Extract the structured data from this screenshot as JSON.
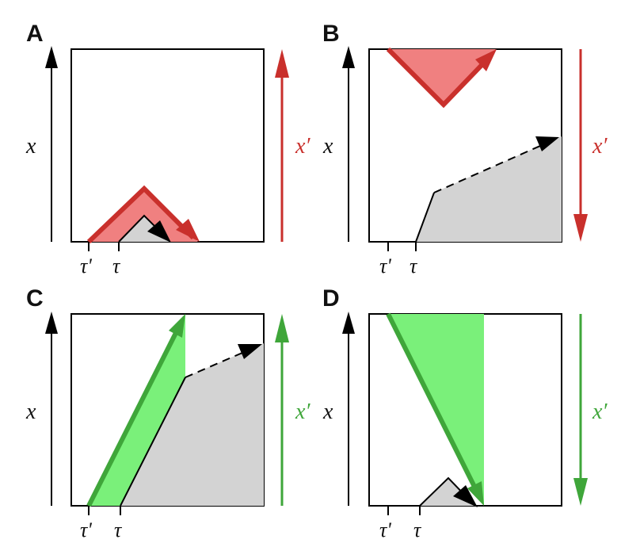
{
  "panels": [
    {
      "letter": "A",
      "x_label": "x",
      "xprime_label": "x′",
      "tau_prime_label": "τ'",
      "tau_label": "τ",
      "accent": "#c9302c",
      "fill": "#f08080",
      "xprime_direction": "up"
    },
    {
      "letter": "B",
      "x_label": "x",
      "xprime_label": "x′",
      "tau_prime_label": "τ'",
      "tau_label": "τ",
      "accent": "#c9302c",
      "fill": "#f08080",
      "xprime_direction": "down"
    },
    {
      "letter": "C",
      "x_label": "x",
      "xprime_label": "x′",
      "tau_prime_label": "τ'",
      "tau_label": "τ",
      "accent": "#3fa63a",
      "fill": "#7af07a",
      "xprime_direction": "up"
    },
    {
      "letter": "D",
      "x_label": "x",
      "xprime_label": "x′",
      "tau_prime_label": "τ'",
      "tau_label": "τ",
      "accent": "#3fa63a",
      "fill": "#7af07a",
      "xprime_direction": "down"
    }
  ],
  "colors": {
    "gray_region": "#d3d3d3",
    "axis": "#000000",
    "red_line": "#c9302c",
    "red_fill": "#f08080",
    "green_line": "#3fa63a",
    "green_fill": "#7af07a"
  }
}
